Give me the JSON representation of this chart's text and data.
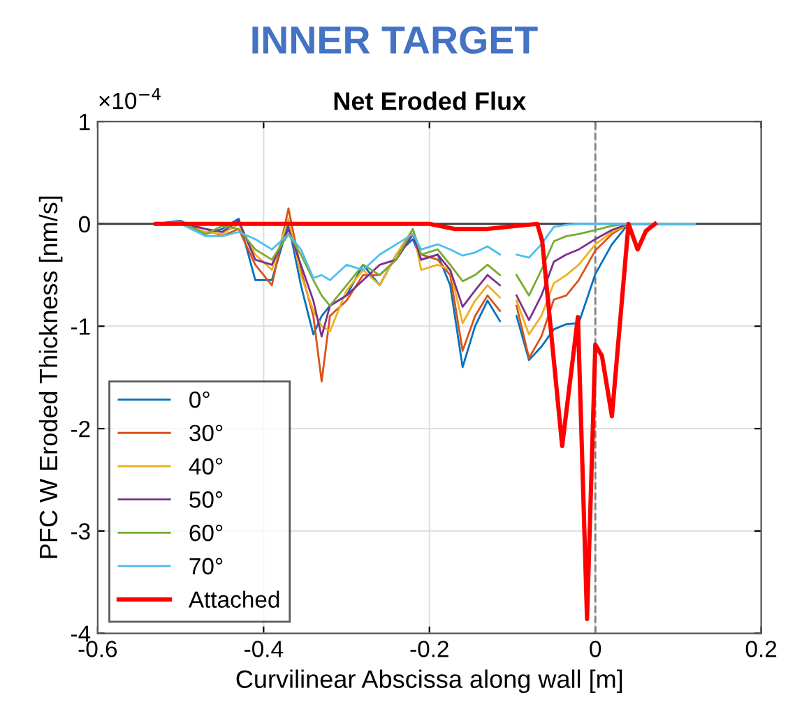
{
  "chart_data": {
    "type": "line",
    "title": "INNER TARGET",
    "subtitle": "Net Eroded Flux",
    "xlabel": "Curvilinear Abscissa along wall [m]",
    "ylabel": "PFC W Eroded Thickness [nm/s]",
    "annotations": [
      "×10$^{−4}$"
    ],
    "x": [
      -0.53,
      -0.5,
      -0.47,
      -0.45,
      -0.43,
      -0.41,
      -0.39,
      -0.37,
      -0.355,
      -0.34,
      -0.33,
      -0.32,
      -0.3,
      -0.28,
      -0.26,
      -0.24,
      -0.22,
      -0.21,
      -0.19,
      -0.175,
      -0.16,
      -0.145,
      -0.13,
      -0.115,
      -0.105,
      -0.095,
      -0.08,
      -0.065,
      -0.05,
      -0.035,
      -0.02,
      0.0,
      0.02,
      0.04,
      0.08,
      0.12
    ],
    "series": [
      {
        "name": "0°",
        "color": "#0072bd",
        "values": [
          0,
          0.03,
          -0.1,
          -0.05,
          0.05,
          -0.55,
          -0.55,
          0.0,
          -0.6,
          -1.08,
          -0.9,
          -0.8,
          -0.7,
          -0.4,
          -0.6,
          -0.3,
          -0.15,
          -0.35,
          -0.3,
          -0.6,
          -1.4,
          -1.0,
          -0.75,
          -0.95,
          null,
          -0.9,
          -1.33,
          -1.2,
          -1.03,
          -0.98,
          -0.97,
          -0.49,
          -0.2,
          0,
          0,
          0
        ]
      },
      {
        "name": "30°",
        "color": "#d95319",
        "values": [
          0,
          0.02,
          -0.05,
          -0.12,
          -0.05,
          -0.4,
          -0.6,
          0.15,
          -0.45,
          -0.9,
          -1.54,
          -0.9,
          -0.75,
          -0.5,
          -0.5,
          -0.35,
          -0.1,
          -0.3,
          -0.35,
          -0.5,
          -1.24,
          -0.9,
          -0.7,
          -0.85,
          null,
          -0.8,
          -1.31,
          -1.1,
          -0.74,
          -0.7,
          -0.55,
          -0.26,
          -0.1,
          0,
          0,
          0
        ]
      },
      {
        "name": "40°",
        "color": "#edb120",
        "values": [
          0,
          0,
          -0.08,
          -0.1,
          0,
          -0.3,
          -0.45,
          0.05,
          -0.5,
          -0.85,
          -1.0,
          -1.05,
          -0.65,
          -0.45,
          -0.6,
          -0.3,
          -0.05,
          -0.45,
          -0.4,
          -0.45,
          -0.97,
          -0.75,
          -0.6,
          -0.72,
          null,
          -0.75,
          -1.08,
          -0.9,
          -0.58,
          -0.5,
          -0.4,
          -0.2,
          -0.08,
          0,
          0,
          0
        ]
      },
      {
        "name": "50°",
        "color": "#7e2f8e",
        "values": [
          0,
          0,
          -0.05,
          -0.08,
          0.03,
          -0.35,
          -0.4,
          -0.05,
          -0.4,
          -0.75,
          -1.1,
          -0.8,
          -0.7,
          -0.55,
          -0.4,
          -0.35,
          -0.1,
          -0.35,
          -0.3,
          -0.45,
          -0.81,
          -0.65,
          -0.5,
          -0.6,
          null,
          -0.7,
          -0.94,
          -0.7,
          -0.37,
          -0.3,
          -0.25,
          -0.15,
          -0.06,
          0,
          0,
          0
        ]
      },
      {
        "name": "60°",
        "color": "#77ac30",
        "values": [
          0,
          0.02,
          -0.1,
          -0.02,
          -0.05,
          -0.25,
          -0.35,
          -0.1,
          -0.3,
          -0.55,
          -0.7,
          -0.8,
          -0.6,
          -0.4,
          -0.5,
          -0.35,
          -0.05,
          -0.3,
          -0.25,
          -0.4,
          -0.56,
          -0.5,
          -0.4,
          -0.5,
          null,
          -0.5,
          -0.7,
          -0.45,
          -0.17,
          -0.12,
          -0.1,
          -0.06,
          -0.02,
          0,
          0,
          0
        ]
      },
      {
        "name": "70°",
        "color": "#4dbeee",
        "values": [
          0,
          0,
          -0.12,
          -0.12,
          -0.08,
          -0.15,
          -0.25,
          -0.1,
          -0.25,
          -0.53,
          -0.5,
          -0.55,
          -0.4,
          -0.45,
          -0.3,
          -0.2,
          -0.1,
          -0.25,
          -0.2,
          -0.25,
          -0.31,
          -0.28,
          -0.22,
          -0.3,
          null,
          -0.3,
          -0.33,
          -0.2,
          -0.03,
          -0.01,
          0,
          0,
          0,
          0,
          0,
          0
        ]
      },
      {
        "name": "Attached",
        "color": "#ff0000",
        "x": [
          -0.53,
          -0.2,
          -0.17,
          -0.13,
          -0.07,
          -0.064,
          -0.04,
          -0.021,
          -0.01,
          0.0,
          0.008,
          0.02,
          0.04,
          0.051,
          0.061,
          0.072
        ],
        "values": [
          0,
          0,
          -0.05,
          -0.05,
          0,
          -0.17,
          -2.17,
          -0.91,
          -3.86,
          -1.18,
          -1.29,
          -1.88,
          0,
          -0.25,
          -0.07,
          0
        ]
      }
    ],
    "xlim": [
      -0.6,
      0.2
    ],
    "xticks": [
      -0.6,
      -0.4,
      -0.2,
      0,
      0.2
    ],
    "ylim": [
      -4,
      1
    ],
    "yticks": [
      -4,
      -3,
      -2,
      -1,
      0,
      1
    ],
    "ref_lines": [
      {
        "axis": "x",
        "value": 0,
        "color": "#808080",
        "line_style": "dashed"
      },
      {
        "axis": "y",
        "value": 0,
        "color": "#404040",
        "line_style": "solid"
      }
    ],
    "grid": true,
    "legend": "bottom left",
    "line_style": "solid",
    "marker": "none"
  }
}
